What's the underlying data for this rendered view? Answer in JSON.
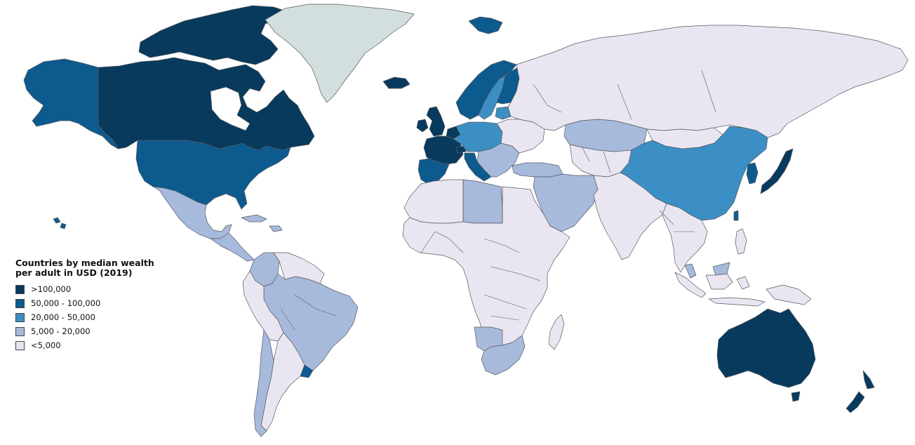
{
  "legend": {
    "title": "Countries by median wealth per adult in USD (2019)",
    "items": [
      {
        "label": ">100,000",
        "color": "#083a5e"
      },
      {
        "label": "50,000 - 100,000",
        "color": "#0d5a8f"
      },
      {
        "label": "20,000 - 50,000",
        "color": "#3c8fc4"
      },
      {
        "label": "5,000 - 20,000",
        "color": "#a7badc"
      },
      {
        "label": "<5,000",
        "color": "#e9e6f1"
      }
    ]
  },
  "no_data_color": "#d3dede",
  "ocean_color": "#ffffff",
  "regions": [
    {
      "name": "canada",
      "class": ">100,000"
    },
    {
      "name": "canadian-arctic-islands",
      "class": ">100,000"
    },
    {
      "name": "alaska",
      "class": "50,000 - 100,000"
    },
    {
      "name": "usa",
      "class": "50,000 - 100,000"
    },
    {
      "name": "hawaii",
      "class": "50,000 - 100,000"
    },
    {
      "name": "greenland",
      "class": "no data"
    },
    {
      "name": "iceland",
      "class": ">100,000"
    },
    {
      "name": "svalbard",
      "class": "50,000 - 100,000"
    },
    {
      "name": "mexico",
      "class": "5,000 - 20,000"
    },
    {
      "name": "central-america",
      "class": "5,000 - 20,000"
    },
    {
      "name": "caribbean",
      "class": "5,000 - 20,000"
    },
    {
      "name": "colombia",
      "class": "5,000 - 20,000"
    },
    {
      "name": "venezuela-guianas",
      "class": "<5,000"
    },
    {
      "name": "brazil",
      "class": "5,000 - 20,000"
    },
    {
      "name": "peru-bolivia",
      "class": "<5,000"
    },
    {
      "name": "chile",
      "class": "5,000 - 20,000"
    },
    {
      "name": "argentina",
      "class": "<5,000"
    },
    {
      "name": "uruguay",
      "class": "50,000 - 100,000"
    },
    {
      "name": "uk",
      "class": ">100,000"
    },
    {
      "name": "ireland",
      "class": ">100,000"
    },
    {
      "name": "france",
      "class": ">100,000"
    },
    {
      "name": "belgium-netherlands",
      "class": ">100,000"
    },
    {
      "name": "switzerland",
      "class": ">100,000"
    },
    {
      "name": "iberia",
      "class": "50,000 - 100,000"
    },
    {
      "name": "italy",
      "class": "50,000 - 100,000"
    },
    {
      "name": "germany-central-europe",
      "class": "20,000 - 50,000"
    },
    {
      "name": "scandinavia",
      "class": "50,000 - 100,000"
    },
    {
      "name": "sweden",
      "class": "20,000 - 50,000"
    },
    {
      "name": "finland",
      "class": "50,000 - 100,000"
    },
    {
      "name": "baltics",
      "class": "20,000 - 50,000"
    },
    {
      "name": "eastern-europe",
      "class": "<5,000"
    },
    {
      "name": "balkans",
      "class": "5,000 - 20,000"
    },
    {
      "name": "russia",
      "class": "<5,000"
    },
    {
      "name": "kazakhstan",
      "class": "5,000 - 20,000"
    },
    {
      "name": "turkey",
      "class": "5,000 - 20,000"
    },
    {
      "name": "middle-east",
      "class": "5,000 - 20,000"
    },
    {
      "name": "central-asia",
      "class": "<5,000"
    },
    {
      "name": "china",
      "class": "20,000 - 50,000"
    },
    {
      "name": "mongolia",
      "class": "<5,000"
    },
    {
      "name": "korea",
      "class": "50,000 - 100,000"
    },
    {
      "name": "japan",
      "class": ">100,000"
    },
    {
      "name": "taiwan",
      "class": "50,000 - 100,000"
    },
    {
      "name": "india-south-asia",
      "class": "<5,000"
    },
    {
      "name": "southeast-asia",
      "class": "<5,000"
    },
    {
      "name": "indonesia",
      "class": "<5,000"
    },
    {
      "name": "malaysia",
      "class": "5,000 - 20,000"
    },
    {
      "name": "philippines",
      "class": "<5,000"
    },
    {
      "name": "north-africa",
      "class": "<5,000"
    },
    {
      "name": "libya",
      "class": "5,000 - 20,000"
    },
    {
      "name": "sub-saharan-africa",
      "class": "<5,000"
    },
    {
      "name": "south-africa",
      "class": "5,000 - 20,000"
    },
    {
      "name": "namibia-botswana",
      "class": "5,000 - 20,000"
    },
    {
      "name": "madagascar",
      "class": "<5,000"
    },
    {
      "name": "australia",
      "class": ">100,000"
    },
    {
      "name": "new-zealand",
      "class": ">100,000"
    },
    {
      "name": "papua-new-guinea",
      "class": "<5,000"
    }
  ]
}
